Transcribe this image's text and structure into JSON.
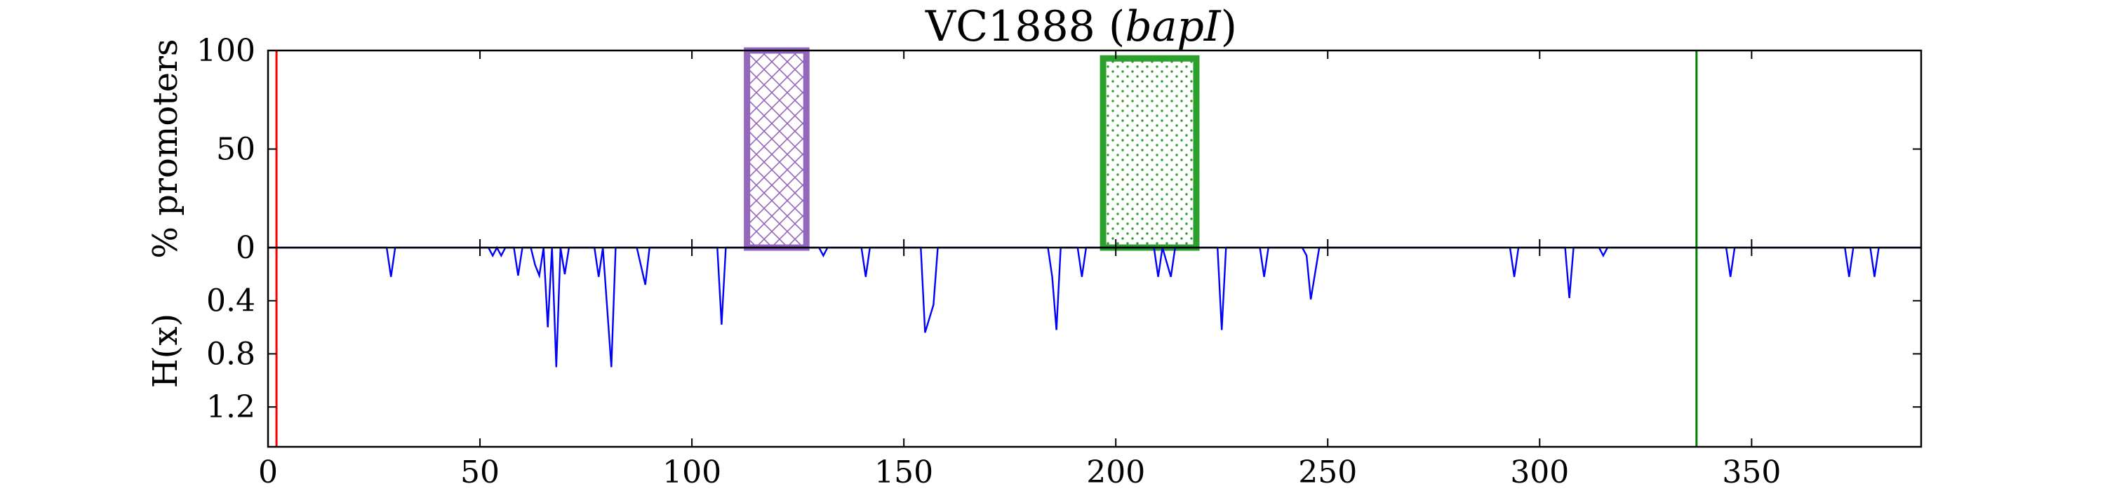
{
  "chart_data": {
    "type": "line",
    "title": "VC1888 (bapI)",
    "title_main": "VC1888 (",
    "title_italic": "bapI",
    "title_close": ")",
    "x_range": [
      0,
      390
    ],
    "x_ticks": [
      0,
      50,
      100,
      150,
      200,
      250,
      300,
      350
    ],
    "top_panel": {
      "ylabel": "% promoters",
      "ylim": [
        0,
        100
      ],
      "y_ticks": [
        0,
        50,
        100
      ],
      "boxes": [
        {
          "x_start": 113,
          "x_end": 127,
          "y": 100,
          "edge_color": "#9467bd",
          "hatch": "crosshatch"
        },
        {
          "x_start": 197,
          "x_end": 219,
          "y": 96,
          "edge_color": "#2ca02c",
          "hatch": "dots"
        }
      ]
    },
    "bottom_panel": {
      "ylabel": "H(x)",
      "ylim": [
        1.5,
        0
      ],
      "y_ticks": [
        0.4,
        0.8,
        1.2
      ],
      "y_tick_labels": [
        "0.4",
        "0.8",
        "1.2"
      ],
      "line_color": "#0000ff",
      "series": [
        {
          "name": "",
          "points": [
            [
              0,
              0
            ],
            [
              28,
              0
            ],
            [
              29,
              0.22
            ],
            [
              30,
              0
            ],
            [
              52,
              0
            ],
            [
              53,
              0.06
            ],
            [
              54,
              0
            ],
            [
              55,
              0.06
            ],
            [
              56,
              0
            ],
            [
              58,
              0
            ],
            [
              59,
              0.21
            ],
            [
              60,
              0
            ],
            [
              62,
              0
            ],
            [
              63,
              0.13
            ],
            [
              64,
              0.21
            ],
            [
              65,
              0
            ],
            [
              66,
              0.6
            ],
            [
              67,
              0
            ],
            [
              68,
              0.9
            ],
            [
              69,
              0
            ],
            [
              70,
              0.2
            ],
            [
              71,
              0
            ],
            [
              77,
              0
            ],
            [
              78,
              0.22
            ],
            [
              79,
              0
            ],
            [
              81,
              0.9
            ],
            [
              82,
              0
            ],
            [
              87,
              0
            ],
            [
              89,
              0.28
            ],
            [
              90,
              0
            ],
            [
              106,
              0
            ],
            [
              107,
              0.58
            ],
            [
              108,
              0
            ],
            [
              130,
              0
            ],
            [
              131,
              0.06
            ],
            [
              132,
              0
            ],
            [
              140,
              0
            ],
            [
              141,
              0.22
            ],
            [
              142,
              0
            ],
            [
              154,
              0
            ],
            [
              155,
              0.64
            ],
            [
              157,
              0.43
            ],
            [
              158,
              0
            ],
            [
              184,
              0
            ],
            [
              185,
              0.22
            ],
            [
              186,
              0.62
            ],
            [
              187,
              0
            ],
            [
              191,
              0
            ],
            [
              192,
              0.22
            ],
            [
              193,
              0
            ],
            [
              209,
              0
            ],
            [
              210,
              0.22
            ],
            [
              211,
              0
            ],
            [
              213,
              0.22
            ],
            [
              214,
              0
            ],
            [
              224,
              0
            ],
            [
              225,
              0.62
            ],
            [
              226,
              0
            ],
            [
              234,
              0
            ],
            [
              235,
              0.22
            ],
            [
              236,
              0
            ],
            [
              244,
              0
            ],
            [
              245,
              0.06
            ],
            [
              246,
              0.39
            ],
            [
              248,
              0
            ],
            [
              293,
              0
            ],
            [
              294,
              0.22
            ],
            [
              295,
              0
            ],
            [
              306,
              0
            ],
            [
              307,
              0.38
            ],
            [
              308,
              0
            ],
            [
              314,
              0
            ],
            [
              315,
              0.06
            ],
            [
              316,
              0
            ],
            [
              344,
              0
            ],
            [
              345,
              0.22
            ],
            [
              346,
              0
            ],
            [
              372,
              0
            ],
            [
              373,
              0.22
            ],
            [
              374,
              0
            ],
            [
              378,
              0
            ],
            [
              379,
              0.22
            ],
            [
              380,
              0
            ],
            [
              390,
              0
            ]
          ]
        }
      ]
    },
    "vertical_lines": [
      {
        "x": 2,
        "color": "#ff0000"
      },
      {
        "x": 337,
        "color": "#008000"
      }
    ],
    "grid": false,
    "legend": "none"
  }
}
